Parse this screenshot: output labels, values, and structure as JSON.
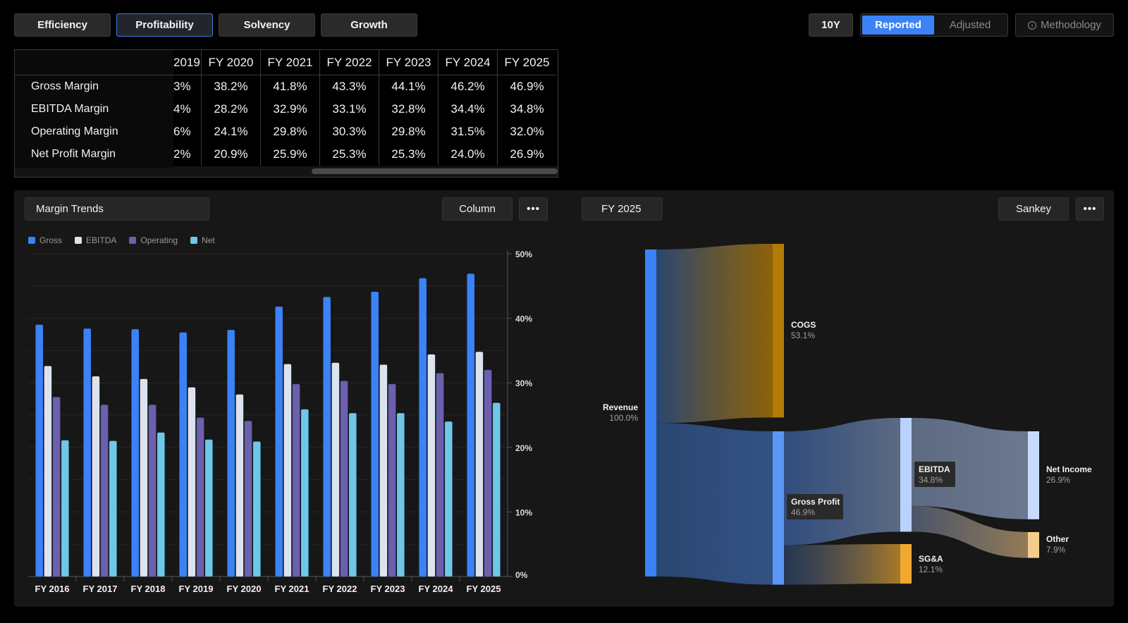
{
  "tabs": [
    "Efficiency",
    "Profitability",
    "Solvency",
    "Growth"
  ],
  "active_tab": "Profitability",
  "period_button": "10Y",
  "toggle": {
    "on": "Reported",
    "off": "Adjusted"
  },
  "methodology_label": "Methodology",
  "table": {
    "first_col_partial": "2019",
    "years": [
      "FY 2020",
      "FY 2021",
      "FY 2022",
      "FY 2023",
      "FY 2024",
      "FY 2025"
    ],
    "rows": [
      {
        "label": "Gross Margin",
        "partial": "3%",
        "values": [
          "38.2%",
          "41.8%",
          "43.3%",
          "44.1%",
          "46.2%",
          "46.9%"
        ]
      },
      {
        "label": "EBITDA Margin",
        "partial": "4%",
        "values": [
          "28.2%",
          "32.9%",
          "33.1%",
          "32.8%",
          "34.4%",
          "34.8%"
        ]
      },
      {
        "label": "Operating Margin",
        "partial": "6%",
        "values": [
          "24.1%",
          "29.8%",
          "30.3%",
          "29.8%",
          "31.5%",
          "32.0%"
        ]
      },
      {
        "label": "Net Profit Margin",
        "partial": "2%",
        "values": [
          "20.9%",
          "25.9%",
          "25.3%",
          "25.3%",
          "24.0%",
          "26.9%"
        ]
      }
    ]
  },
  "left_panel": {
    "title": "Margin Trends",
    "chart_type_label": "Column",
    "more": "•••"
  },
  "right_panel": {
    "year_label": "FY 2025",
    "chart_type_label": "Sankey",
    "more": "•••"
  },
  "colors": {
    "gross": "#3b82f6",
    "ebitda": "#dde3ee",
    "operating": "#6b5fb0",
    "net": "#6cc8e8",
    "cogs": "#b47a06",
    "sga": "#f0a830"
  },
  "chart_data": [
    {
      "type": "bar",
      "categories": [
        "FY 2016",
        "FY 2017",
        "FY 2018",
        "FY 2019",
        "FY 2020",
        "FY 2021",
        "FY 2022",
        "FY 2023",
        "FY 2024",
        "FY 2025"
      ],
      "series": [
        {
          "name": "Gross",
          "values": [
            39.0,
            38.4,
            38.3,
            37.8,
            38.2,
            41.8,
            43.3,
            44.1,
            46.2,
            46.9
          ]
        },
        {
          "name": "EBITDA",
          "values": [
            32.6,
            31.0,
            30.6,
            29.3,
            28.2,
            32.9,
            33.1,
            32.8,
            34.4,
            34.8
          ]
        },
        {
          "name": "Operating",
          "values": [
            27.8,
            26.6,
            26.6,
            24.6,
            24.1,
            29.8,
            30.3,
            29.8,
            31.5,
            32.0
          ]
        },
        {
          "name": "Net",
          "values": [
            21.1,
            21.0,
            22.3,
            21.2,
            20.9,
            25.9,
            25.3,
            25.3,
            24.0,
            26.9
          ]
        }
      ],
      "yticks": [
        "0%",
        "10%",
        "20%",
        "30%",
        "40%",
        "50%"
      ],
      "ylim": [
        0,
        50
      ],
      "legend": "top-left"
    },
    {
      "type": "sankey",
      "nodes": [
        {
          "name": "Revenue",
          "value": "100.0%"
        },
        {
          "name": "COGS",
          "value": "53.1%"
        },
        {
          "name": "Gross Profit",
          "value": "46.9%"
        },
        {
          "name": "EBITDA",
          "value": "34.8%"
        },
        {
          "name": "SG&A",
          "value": "12.1%"
        },
        {
          "name": "Net Income",
          "value": "26.9%"
        },
        {
          "name": "Other",
          "value": "7.9%"
        }
      ],
      "links": [
        {
          "from": "Revenue",
          "to": "COGS",
          "value": 53.1
        },
        {
          "from": "Revenue",
          "to": "Gross Profit",
          "value": 46.9
        },
        {
          "from": "Gross Profit",
          "to": "EBITDA",
          "value": 34.8
        },
        {
          "from": "Gross Profit",
          "to": "SG&A",
          "value": 12.1
        },
        {
          "from": "EBITDA",
          "to": "Net Income",
          "value": 26.9
        },
        {
          "from": "EBITDA",
          "to": "Other",
          "value": 7.9
        }
      ]
    }
  ]
}
